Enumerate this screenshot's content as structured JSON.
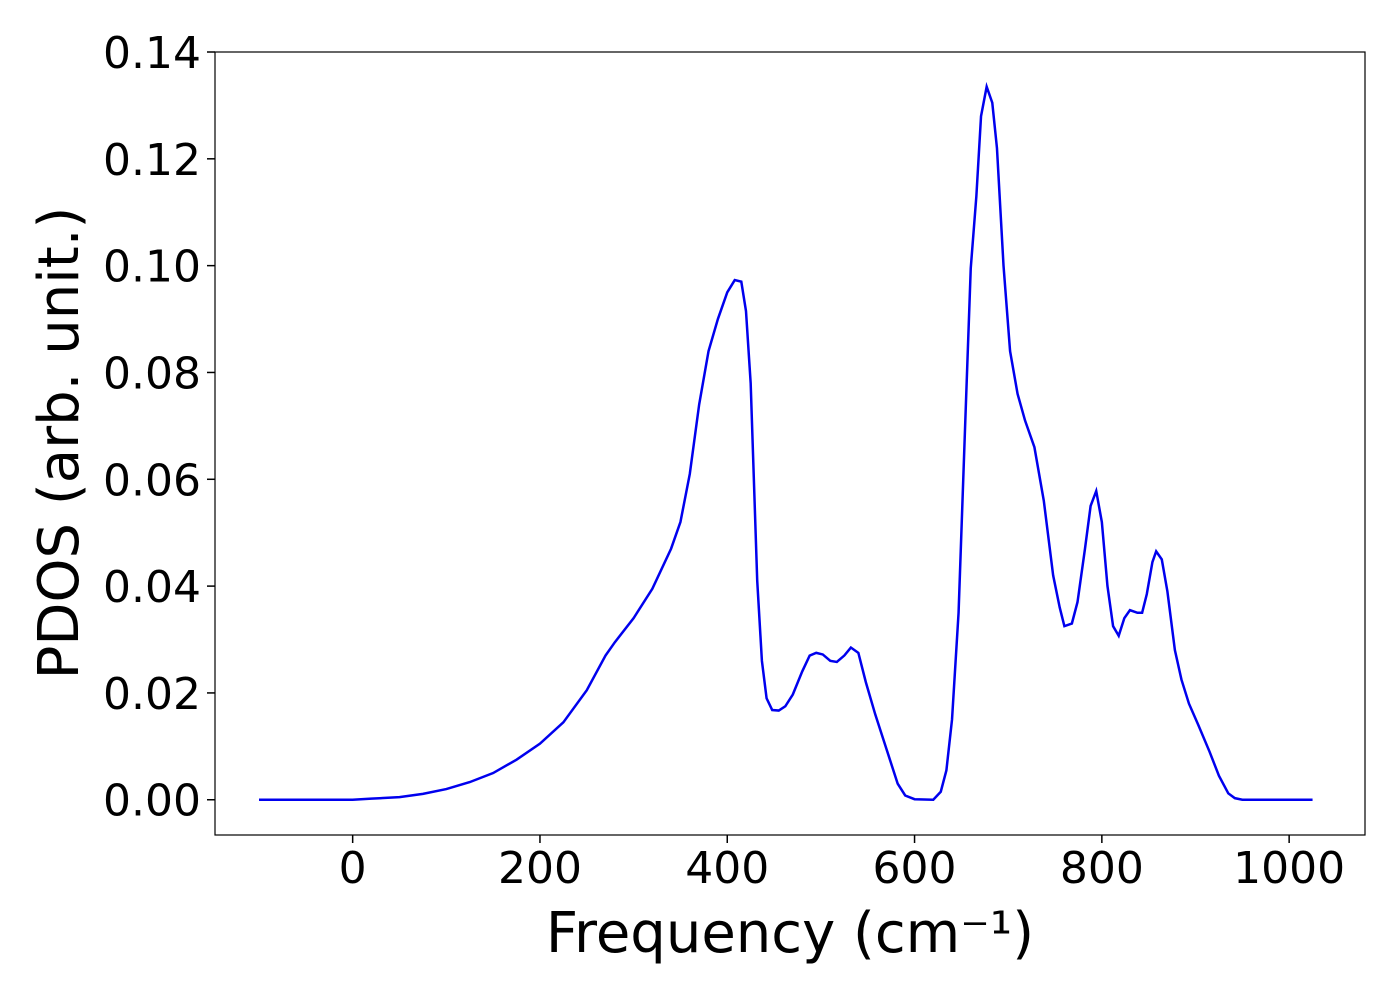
{
  "chart_data": {
    "type": "line",
    "x_label": "Frequency (cm⁻¹)",
    "y_label": "PDOS (arb. unit.)",
    "xlim": [
      -147,
      1081
    ],
    "ylim": [
      -0.0066,
      0.14
    ],
    "xticks": [
      0,
      200,
      400,
      600,
      800,
      1000
    ],
    "yticks": [
      {
        "value": 0,
        "label": "0.00"
      },
      0.02,
      0.04,
      0.06,
      0.08,
      {
        "value": 0.1,
        "label": "0.10"
      },
      0.12,
      0.14
    ],
    "series": [
      {
        "color": "#0000ee",
        "x": [
          -100,
          0,
          20,
          50,
          75,
          100,
          125,
          150,
          175,
          200,
          225,
          250,
          270,
          280,
          300,
          320,
          340,
          350,
          360,
          370,
          380,
          390,
          400,
          408,
          415,
          420,
          425,
          432,
          437,
          442,
          448,
          455,
          462,
          470,
          480,
          488,
          495,
          502,
          510,
          517,
          525,
          532,
          540,
          548,
          558,
          570,
          582,
          590,
          600,
          620,
          628,
          634,
          640,
          647,
          654,
          660,
          666,
          671,
          677,
          683,
          688,
          695,
          702,
          710,
          718,
          728,
          738,
          748,
          755,
          760,
          768,
          774,
          782,
          788,
          794,
          800,
          806,
          812,
          818,
          824,
          830,
          838,
          843,
          848,
          854,
          858,
          864,
          870,
          878,
          885,
          893,
          903,
          915,
          925,
          935,
          942,
          950,
          1025
        ],
        "values": [
          0,
          0,
          0.0002,
          0.0005,
          0.0011,
          0.002,
          0.0033,
          0.005,
          0.0075,
          0.0105,
          0.0145,
          0.0205,
          0.027,
          0.0295,
          0.034,
          0.0395,
          0.047,
          0.052,
          0.061,
          0.074,
          0.084,
          0.09,
          0.095,
          0.0973,
          0.097,
          0.0915,
          0.078,
          0.041,
          0.026,
          0.019,
          0.0168,
          0.0167,
          0.0175,
          0.0197,
          0.024,
          0.027,
          0.0275,
          0.0272,
          0.026,
          0.0258,
          0.027,
          0.0285,
          0.0275,
          0.022,
          0.016,
          0.0095,
          0.003,
          0.0008,
          0.0001,
          0,
          0.0015,
          0.0055,
          0.015,
          0.035,
          0.07,
          0.0995,
          0.113,
          0.128,
          0.1335,
          0.1305,
          0.122,
          0.1,
          0.084,
          0.076,
          0.071,
          0.066,
          0.056,
          0.042,
          0.036,
          0.0325,
          0.033,
          0.037,
          0.047,
          0.055,
          0.0578,
          0.052,
          0.04,
          0.0325,
          0.0307,
          0.034,
          0.0355,
          0.035,
          0.035,
          0.0385,
          0.0445,
          0.0465,
          0.045,
          0.039,
          0.028,
          0.0225,
          0.018,
          0.014,
          0.009,
          0.0045,
          0.0012,
          0.0003,
          0,
          0
        ]
      }
    ]
  }
}
